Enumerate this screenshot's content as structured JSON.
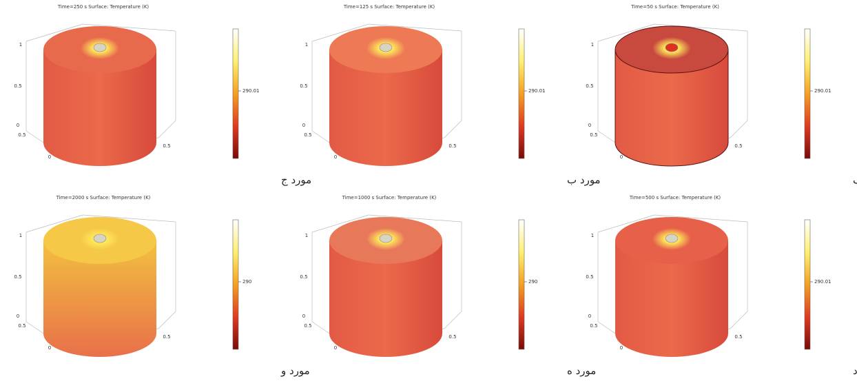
{
  "panels": [
    {
      "title": "Time=250 s   Surface: Temperature (K)",
      "colorbar_label": "290.01",
      "caption": "مورد ج",
      "ticks": [
        "1",
        "0.5",
        "0",
        "0.5",
        "0",
        "0.5"
      ]
    },
    {
      "title": "Time=125 s   Surface: Temperature (K)",
      "colorbar_label": "290.01",
      "caption": "مورد ب",
      "ticks": [
        "1",
        "0.5",
        "0",
        "0.5",
        "0",
        "0.5"
      ]
    },
    {
      "title": "Time=50 s   Surface: Temperature (K)",
      "colorbar_label": "290.01",
      "caption": "مورد الف",
      "ticks": [
        "1",
        "0.5",
        "0",
        "0.5",
        "0",
        "0.5"
      ]
    },
    {
      "title": "Time=2000 s   Surface: Temperature (K)",
      "colorbar_label": "290",
      "caption": "مورد و",
      "ticks": [
        "1",
        "0.5",
        "0",
        "0.5",
        "0",
        "0.5"
      ]
    },
    {
      "title": "Time=1000 s   Surface: Temperature (K)",
      "colorbar_label": "290",
      "caption": "مورد ه",
      "ticks": [
        "1",
        "0.5",
        "0",
        "0.5",
        "0",
        "0.5"
      ]
    },
    {
      "title": "Time=500 s   Surface: Temperature (K)",
      "colorbar_label": "290.01",
      "caption": "مورد د",
      "ticks": [
        "1",
        "0.5",
        "0",
        "0.5",
        "0",
        "0.5"
      ]
    }
  ]
}
